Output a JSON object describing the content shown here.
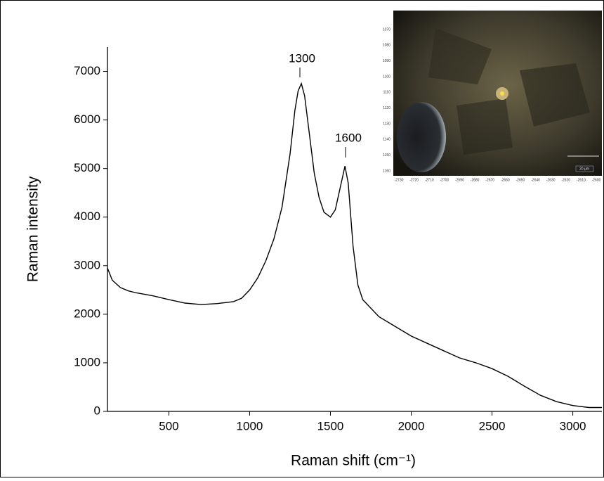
{
  "chart_data": {
    "type": "line",
    "x_label": "Raman shift (cm⁻¹)",
    "y_label": "Raman intensity",
    "color": "#000000",
    "x": [
      120,
      150,
      200,
      250,
      300,
      400,
      500,
      600,
      700,
      800,
      900,
      950,
      1000,
      1050,
      1100,
      1150,
      1200,
      1250,
      1280,
      1300,
      1320,
      1340,
      1370,
      1400,
      1430,
      1460,
      1500,
      1530,
      1560,
      1590,
      1610,
      1640,
      1670,
      1700,
      1800,
      1900,
      2000,
      2100,
      2200,
      2300,
      2400,
      2500,
      2600,
      2700,
      2800,
      2900,
      3000,
      3100,
      3180
    ],
    "values": [
      2950,
      2700,
      2550,
      2480,
      2440,
      2380,
      2300,
      2230,
      2200,
      2220,
      2260,
      2330,
      2500,
      2750,
      3100,
      3550,
      4200,
      5300,
      6200,
      6600,
      6750,
      6500,
      5700,
      4900,
      4400,
      4100,
      4000,
      4150,
      4600,
      5050,
      4700,
      3400,
      2600,
      2300,
      1950,
      1750,
      1550,
      1400,
      1250,
      1100,
      1000,
      880,
      720,
      520,
      330,
      200,
      120,
      80,
      80
    ],
    "xlim": [
      120,
      3180
    ],
    "ylim": [
      0,
      7500
    ],
    "xticks": [
      500,
      1000,
      1500,
      2000,
      2500,
      3000
    ],
    "yticks": [
      0,
      1000,
      2000,
      3000,
      4000,
      5000,
      6000,
      7000
    ],
    "annotations": [
      "1300",
      "1600"
    ],
    "inset": {
      "xticks": [
        -2730,
        -2720,
        -2710,
        -2700,
        -2690,
        -2680,
        -2670,
        -2660,
        -2650,
        -2640,
        -2630,
        -2620,
        -2610,
        -2600
      ],
      "yticks": [
        1070,
        1080,
        1090,
        1100,
        1110,
        1120,
        1130,
        1140,
        1150,
        1160
      ],
      "scale_label": "20 µm"
    }
  }
}
